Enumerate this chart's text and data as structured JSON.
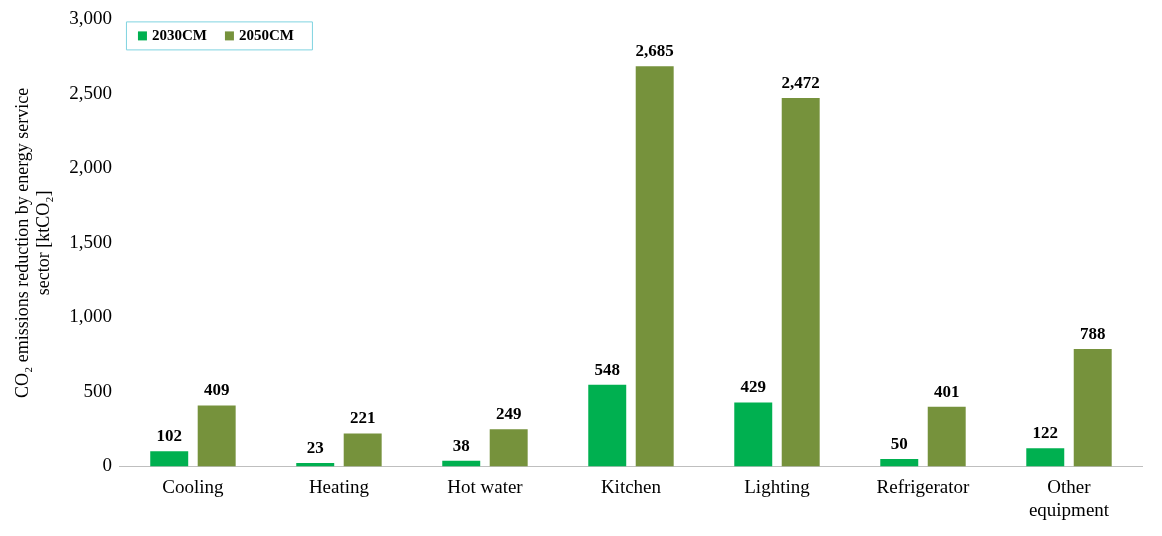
{
  "chart_data": {
    "type": "bar",
    "ylabel": "CO₂ emissions reduction by energy service sector [ktCO₂]",
    "categories": [
      "Cooling",
      "Heating",
      "Hot water",
      "Kitchen",
      "Lighting",
      "Refrigerator",
      "Other equipment"
    ],
    "series": [
      {
        "name": "2030CM",
        "color": "#00b050",
        "values": [
          102,
          23,
          38,
          548,
          429,
          50,
          122
        ],
        "value_labels": [
          "102",
          "23",
          "38",
          "548",
          "429",
          "50",
          "122"
        ]
      },
      {
        "name": "2050CM",
        "color": "#76923c",
        "values": [
          409,
          221,
          249,
          2685,
          2472,
          401,
          788
        ],
        "value_labels": [
          "409",
          "221",
          "249",
          "2,685",
          "2,472",
          "401",
          "788"
        ]
      }
    ],
    "ylim": [
      0,
      3000
    ],
    "yticks": [
      0,
      500,
      {
        "value": 1000,
        "label": "1,000"
      },
      {
        "value": 1500,
        "label": "1,500"
      },
      {
        "value": 2000,
        "label": "2,000"
      },
      {
        "value": 2500,
        "label": "2,500"
      },
      {
        "value": 3000,
        "label": "3,000"
      }
    ],
    "grid": false,
    "legend": "top left"
  }
}
